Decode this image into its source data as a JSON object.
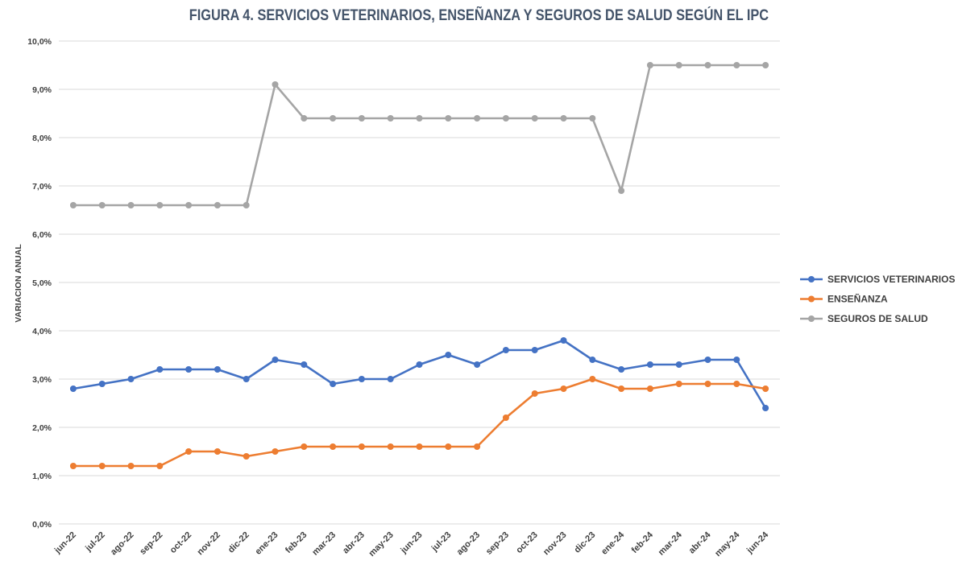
{
  "chart_data": {
    "type": "line",
    "title": "FIGURA 4. SERVICIOS VETERINARIOS, ENSEÑANZA Y SEGUROS DE SALUD SEGÚN EL IPC",
    "xlabel": "",
    "ylabel": "VARIACION ANUAL",
    "ylim": [
      0,
      10
    ],
    "yticks": [
      "0,0%",
      "1,0%",
      "2,0%",
      "3,0%",
      "4,0%",
      "5,0%",
      "6,0%",
      "7,0%",
      "8,0%",
      "9,0%",
      "10,0%"
    ],
    "grid": true,
    "legend_position": "right",
    "categories": [
      "jun-22",
      "jul-22",
      "ago-22",
      "sep-22",
      "oct-22",
      "nov-22",
      "dic-22",
      "ene-23",
      "feb-23",
      "mar-23",
      "abr-23",
      "may-23",
      "jun-23",
      "jul-23",
      "ago-23",
      "sep-23",
      "oct-23",
      "nov-23",
      "dic-23",
      "ene-24",
      "feb-24",
      "mar-24",
      "abr-24",
      "may-24",
      "jun-24"
    ],
    "series": [
      {
        "name": "SERVICIOS VETERINARIOS",
        "color": "#4472c4",
        "values": [
          2.8,
          2.9,
          3.0,
          3.2,
          3.2,
          3.2,
          3.0,
          3.4,
          3.3,
          2.9,
          3.0,
          3.0,
          3.3,
          3.5,
          3.3,
          3.6,
          3.6,
          3.8,
          3.4,
          3.2,
          3.3,
          3.3,
          3.4,
          3.4,
          2.4
        ]
      },
      {
        "name": "ENSEÑANZA",
        "color": "#ed7d31",
        "values": [
          1.2,
          1.2,
          1.2,
          1.2,
          1.5,
          1.5,
          1.4,
          1.5,
          1.6,
          1.6,
          1.6,
          1.6,
          1.6,
          1.6,
          1.6,
          2.2,
          2.7,
          2.8,
          3.0,
          2.8,
          2.8,
          2.9,
          2.9,
          2.9,
          2.8
        ]
      },
      {
        "name": "SEGUROS DE SALUD",
        "color": "#a5a5a5",
        "values": [
          6.6,
          6.6,
          6.6,
          6.6,
          6.6,
          6.6,
          6.6,
          9.1,
          8.4,
          8.4,
          8.4,
          8.4,
          8.4,
          8.4,
          8.4,
          8.4,
          8.4,
          8.4,
          8.4,
          6.9,
          9.5,
          9.5,
          9.5,
          9.5,
          9.5
        ]
      }
    ]
  }
}
